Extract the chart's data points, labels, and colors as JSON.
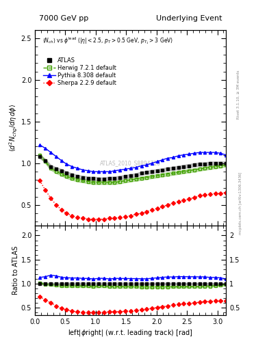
{
  "title_left": "7000 GeV pp",
  "title_right": "Underlying Event",
  "watermark": "ATLAS_2010_S8894728",
  "rivet_label": "Rivet 3.1.10, ≥ 3M events",
  "mcplots_label": "mcplots.cern.ch [arXiv:1306.3436]",
  "xlim": [
    0,
    3.14159
  ],
  "ylim_main": [
    0.25,
    2.6
  ],
  "ylim_ratio": [
    0.35,
    2.2
  ],
  "yticks_main": [
    0.5,
    1.0,
    1.5,
    2.0,
    2.5
  ],
  "yticks_ratio": [
    0.5,
    1.0,
    1.5,
    2.0
  ],
  "atlas_x": [
    0.08,
    0.17,
    0.26,
    0.35,
    0.44,
    0.52,
    0.61,
    0.7,
    0.79,
    0.88,
    0.96,
    1.05,
    1.14,
    1.23,
    1.31,
    1.4,
    1.49,
    1.57,
    1.66,
    1.75,
    1.83,
    1.92,
    2.01,
    2.09,
    2.18,
    2.27,
    2.36,
    2.44,
    2.53,
    2.62,
    2.71,
    2.79,
    2.88,
    2.97,
    3.05,
    3.14
  ],
  "atlas_y": [
    1.08,
    1.03,
    0.96,
    0.93,
    0.91,
    0.88,
    0.86,
    0.84,
    0.83,
    0.82,
    0.82,
    0.81,
    0.81,
    0.82,
    0.82,
    0.83,
    0.84,
    0.85,
    0.86,
    0.88,
    0.89,
    0.9,
    0.91,
    0.92,
    0.93,
    0.94,
    0.95,
    0.96,
    0.97,
    0.98,
    0.99,
    0.99,
    1.0,
    1.0,
    1.0,
    1.0
  ],
  "atlas_err": [
    0.02,
    0.02,
    0.02,
    0.02,
    0.02,
    0.02,
    0.02,
    0.02,
    0.02,
    0.02,
    0.02,
    0.02,
    0.02,
    0.02,
    0.02,
    0.02,
    0.02,
    0.02,
    0.02,
    0.02,
    0.02,
    0.02,
    0.02,
    0.02,
    0.02,
    0.02,
    0.02,
    0.02,
    0.02,
    0.02,
    0.02,
    0.02,
    0.02,
    0.02,
    0.02,
    0.02
  ],
  "herwig_x": [
    0.08,
    0.17,
    0.26,
    0.35,
    0.44,
    0.52,
    0.61,
    0.7,
    0.79,
    0.88,
    0.96,
    1.05,
    1.14,
    1.23,
    1.31,
    1.4,
    1.49,
    1.57,
    1.66,
    1.75,
    1.83,
    1.92,
    2.01,
    2.09,
    2.18,
    2.27,
    2.36,
    2.44,
    2.53,
    2.62,
    2.71,
    2.79,
    2.88,
    2.97,
    3.05,
    3.14
  ],
  "herwig_y": [
    1.1,
    1.02,
    0.94,
    0.9,
    0.87,
    0.84,
    0.82,
    0.8,
    0.79,
    0.78,
    0.77,
    0.77,
    0.77,
    0.77,
    0.77,
    0.78,
    0.79,
    0.8,
    0.81,
    0.82,
    0.83,
    0.84,
    0.85,
    0.86,
    0.87,
    0.88,
    0.89,
    0.9,
    0.91,
    0.92,
    0.93,
    0.94,
    0.95,
    0.96,
    0.97,
    0.98
  ],
  "herwig_band": 0.02,
  "pythia_x": [
    0.08,
    0.17,
    0.26,
    0.35,
    0.44,
    0.52,
    0.61,
    0.7,
    0.79,
    0.88,
    0.96,
    1.05,
    1.14,
    1.23,
    1.31,
    1.4,
    1.49,
    1.57,
    1.66,
    1.75,
    1.83,
    1.92,
    2.01,
    2.09,
    2.18,
    2.27,
    2.36,
    2.44,
    2.53,
    2.62,
    2.71,
    2.79,
    2.88,
    2.97,
    3.05,
    3.14
  ],
  "pythia_y": [
    1.22,
    1.18,
    1.13,
    1.08,
    1.03,
    0.99,
    0.96,
    0.94,
    0.92,
    0.91,
    0.9,
    0.9,
    0.9,
    0.9,
    0.91,
    0.92,
    0.93,
    0.94,
    0.95,
    0.97,
    0.98,
    1.0,
    1.02,
    1.04,
    1.06,
    1.07,
    1.09,
    1.1,
    1.11,
    1.12,
    1.13,
    1.13,
    1.13,
    1.13,
    1.12,
    1.1
  ],
  "sherpa_x": [
    0.08,
    0.17,
    0.26,
    0.35,
    0.44,
    0.52,
    0.61,
    0.7,
    0.79,
    0.88,
    0.96,
    1.05,
    1.14,
    1.23,
    1.31,
    1.4,
    1.49,
    1.57,
    1.66,
    1.75,
    1.83,
    1.92,
    2.01,
    2.09,
    2.18,
    2.27,
    2.36,
    2.44,
    2.53,
    2.62,
    2.71,
    2.79,
    2.88,
    2.97,
    3.05,
    3.14
  ],
  "sherpa_y": [
    0.79,
    0.68,
    0.58,
    0.5,
    0.44,
    0.4,
    0.37,
    0.35,
    0.34,
    0.33,
    0.33,
    0.33,
    0.33,
    0.34,
    0.34,
    0.35,
    0.36,
    0.37,
    0.39,
    0.4,
    0.42,
    0.44,
    0.46,
    0.48,
    0.5,
    0.52,
    0.54,
    0.56,
    0.57,
    0.59,
    0.61,
    0.62,
    0.63,
    0.64,
    0.64,
    0.65
  ],
  "atlas_color": "#000000",
  "herwig_color": "#40a000",
  "pythia_color": "#0000ff",
  "sherpa_color": "#ff0000",
  "background_color": "#ffffff"
}
